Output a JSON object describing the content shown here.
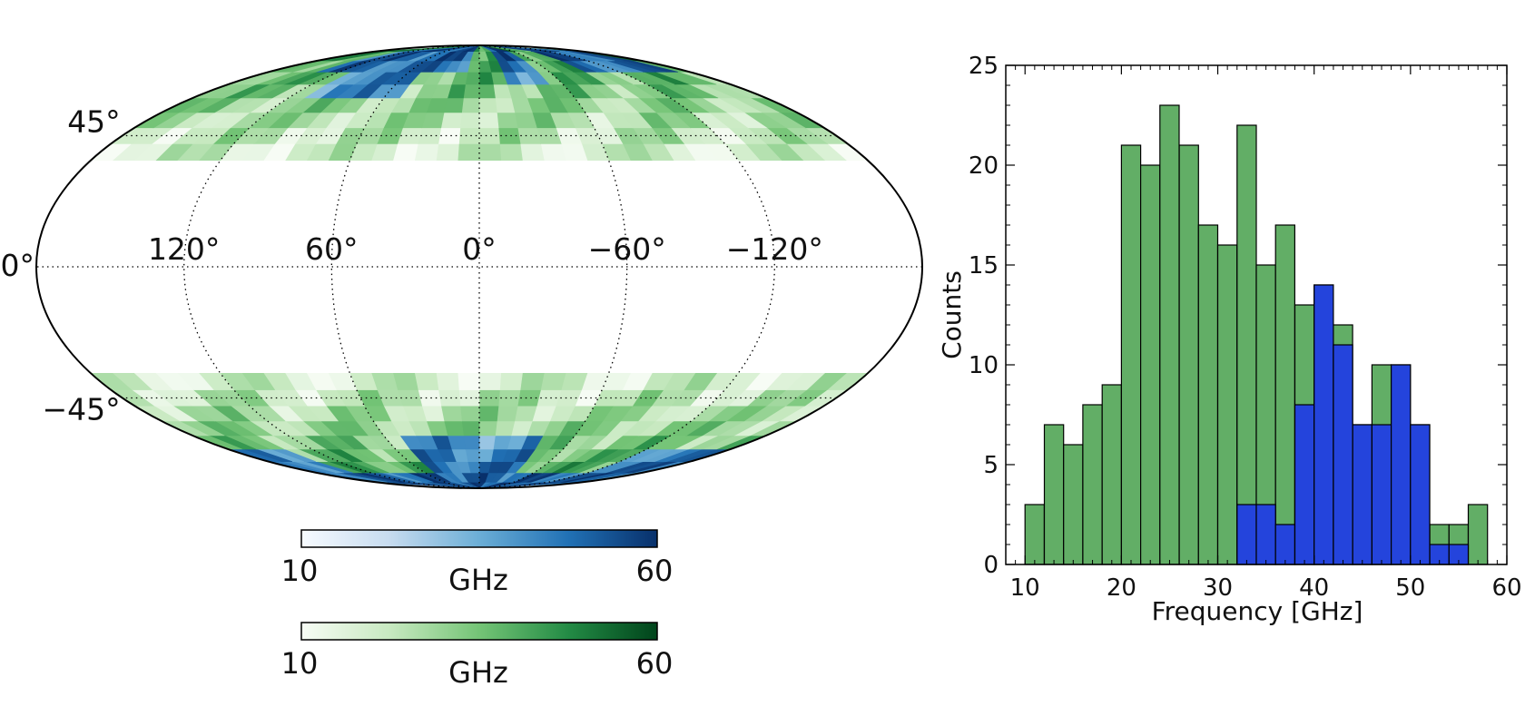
{
  "chart_data": [
    {
      "type": "heatmap",
      "projection": "mollweide",
      "grid_longitudes": [
        120,
        60,
        0,
        -60,
        -120
      ],
      "grid_latitudes": [
        45,
        0,
        -45
      ],
      "longitude_labels": [
        "120°",
        "60°",
        "0°",
        "−60°",
        "−120°"
      ],
      "latitude_labels": [
        "45°",
        "0°",
        "−45°"
      ],
      "masked_band": "|b| < ~30° (empty)",
      "colorbars": [
        {
          "name": "blue",
          "min_label": "10",
          "max_label": "60",
          "unit": "GHz",
          "stops": [
            "#f7fbff",
            "#c6dbef",
            "#6baed6",
            "#2171b5",
            "#08306b"
          ]
        },
        {
          "name": "green",
          "min_label": "10",
          "max_label": "60",
          "unit": "GHz",
          "stops": [
            "#f7fcf5",
            "#c7e9c0",
            "#74c476",
            "#238b45",
            "#00441b"
          ]
        }
      ]
    },
    {
      "type": "bar",
      "subtype": "histogram",
      "xlabel": "Frequency [GHz]",
      "ylabel": "Counts",
      "xlim": [
        8,
        60
      ],
      "ylim": [
        0,
        25
      ],
      "xticks": [
        10,
        20,
        30,
        40,
        50,
        60
      ],
      "yticks": [
        0,
        5,
        10,
        15,
        20,
        25
      ],
      "bin_width": 2,
      "bin_starts": [
        10,
        12,
        14,
        16,
        18,
        20,
        22,
        24,
        26,
        28,
        30,
        32,
        34,
        36,
        38,
        40,
        42,
        44,
        46,
        48,
        50,
        52,
        54,
        56
      ],
      "series": [
        {
          "name": "green",
          "color": "#62ae66",
          "values": [
            3,
            7,
            6,
            8,
            9,
            21,
            20,
            23,
            21,
            17,
            16,
            22,
            15,
            17,
            13,
            14,
            12,
            7,
            10,
            10,
            7,
            2,
            2,
            3
          ]
        },
        {
          "name": "blue",
          "color": "#2444dc",
          "values": [
            0,
            0,
            0,
            0,
            0,
            0,
            0,
            0,
            0,
            0,
            0,
            3,
            3,
            2,
            8,
            14,
            11,
            7,
            7,
            10,
            7,
            1,
            1,
            0
          ]
        }
      ]
    }
  ]
}
